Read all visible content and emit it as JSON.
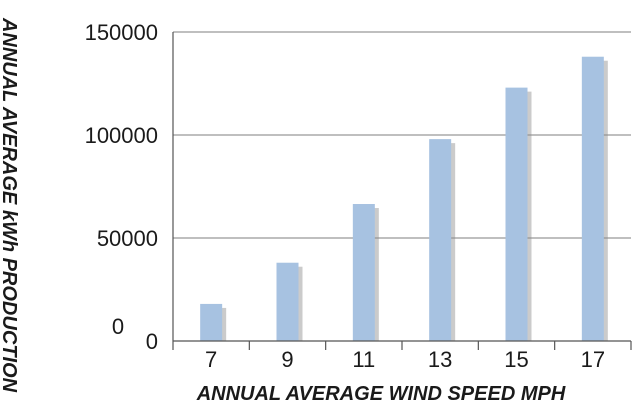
{
  "chart_data": {
    "type": "bar",
    "categories": [
      "7",
      "9",
      "11",
      "13",
      "15",
      "17"
    ],
    "series": [
      {
        "values": [
          18000,
          38000,
          66500,
          98000,
          123000,
          138000
        ]
      }
    ],
    "ylim": [
      0,
      150000
    ],
    "yticks": [
      "0",
      "50000",
      "100000",
      "150000"
    ],
    "y_extra_label": "0",
    "xlabel": "ANNUAL AVERAGE WIND SPEED MPH",
    "ylabel": "ANNUAL AVERAGE kWh PRODUCTION",
    "grid": true,
    "legend": "none",
    "colors": {
      "bar": "#a7c2e1",
      "bar_shadow": "#8b8b8b",
      "grid": "#999999",
      "axis": "#555555"
    }
  }
}
